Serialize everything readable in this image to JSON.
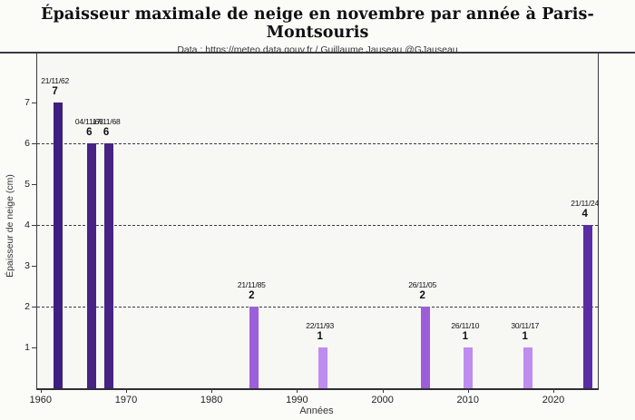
{
  "header": {
    "title": "Épaisseur maximale de neige en novembre par année à Paris-Montsouris",
    "subtitle": "Data : https://meteo.data.gouv.fr / Guillaume Jauseau @GJauseau"
  },
  "chart_data": {
    "type": "bar",
    "title": "Épaisseur maximale de neige en novembre par année à Paris-Montsouris",
    "subtitle": "Data : https://meteo.data.gouv.fr / Guillaume Jauseau @GJauseau",
    "xlabel": "Années",
    "ylabel": "Épaisseur de neige (cm)",
    "xlim": [
      1959.6,
      2025.2
    ],
    "ylim": [
      0,
      8.2
    ],
    "x_ticks": [
      1960,
      1970,
      1980,
      1990,
      2000,
      2010,
      2020
    ],
    "y_ticks": [
      1,
      2,
      3,
      4,
      5,
      6,
      7
    ],
    "gridlines_y": [
      2,
      4,
      6
    ],
    "grid_style": "dashed",
    "legend": "none",
    "plot_bg": "#f7f7f4",
    "figure_bg": "#fbfbf8",
    "bars": [
      {
        "year": 1962,
        "value": 7,
        "date": "21/11/62",
        "color": "#3e1e7e"
      },
      {
        "year": 1966,
        "value": 6,
        "date": "04/11/66",
        "color": "#472385"
      },
      {
        "year": 1968,
        "value": 6,
        "date": "17/11/68",
        "color": "#472385"
      },
      {
        "year": 1985,
        "value": 2,
        "date": "21/11/85",
        "color": "#9d5fd9"
      },
      {
        "year": 1993,
        "value": 1,
        "date": "22/11/93",
        "color": "#bf8cef"
      },
      {
        "year": 2005,
        "value": 2,
        "date": "26/11/05",
        "color": "#9c5ed8"
      },
      {
        "year": 2010,
        "value": 1,
        "date": "26/11/10",
        "color": "#bf8cef"
      },
      {
        "year": 2017,
        "value": 1,
        "date": "30/11/17",
        "color": "#bf8cef"
      },
      {
        "year": 2024,
        "value": 4,
        "date": "21/11/24",
        "color": "#5b2da4"
      }
    ]
  }
}
